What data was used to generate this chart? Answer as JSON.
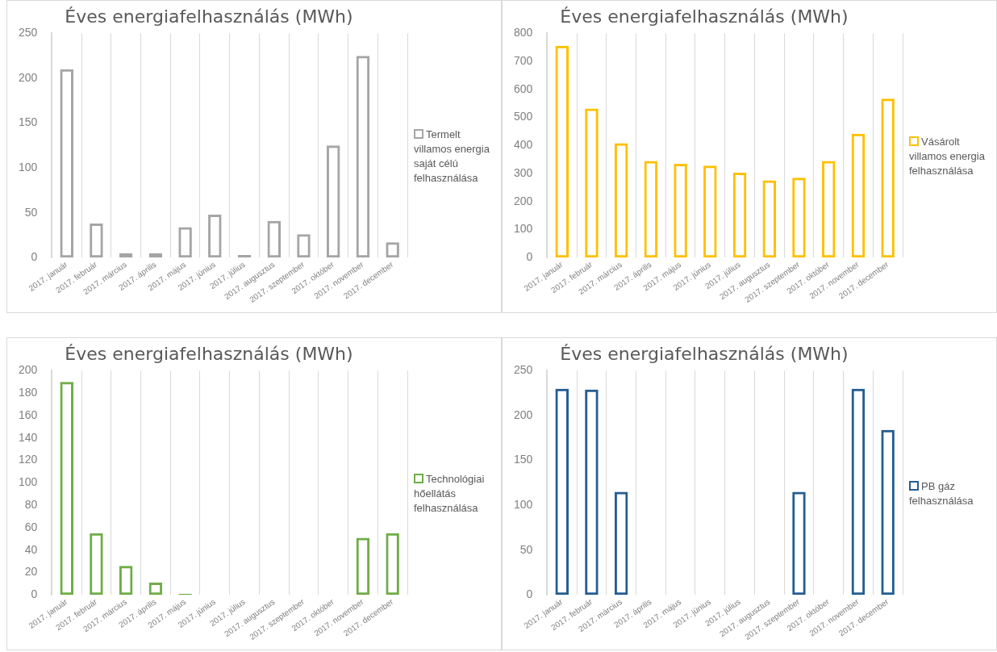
{
  "chart_data": [
    {
      "type": "bar",
      "title": "Éves energiafelhasználás (MWh)",
      "categories": [
        "2017. január",
        "2017. február",
        "2017. március",
        "2017. április",
        "2017. május",
        "2017. június",
        "2017. július",
        "2017. augusztus",
        "2017. szeptember",
        "2017. október",
        "2017. november",
        "2017. december"
      ],
      "series": [
        {
          "name": "Termelt villamos energia saját célú felhasználása",
          "color": "#a5a5a5",
          "values": [
            210,
            38,
            5,
            5,
            34,
            48,
            3,
            41,
            26,
            125,
            225,
            17
          ]
        }
      ],
      "ylim": [
        0,
        250
      ],
      "yticks": [
        0,
        50,
        100,
        150,
        200,
        250
      ],
      "grid": "x",
      "legend": "right"
    },
    {
      "type": "bar",
      "title": "Éves energiafelhasználás (MWh)",
      "categories": [
        "2017. január",
        "2017. február",
        "2017. március",
        "2017. április",
        "2017. május",
        "2017. június",
        "2017. július",
        "2017. augusztus",
        "2017. szeptember",
        "2017. október",
        "2017. november",
        "2017. december"
      ],
      "series": [
        {
          "name": "Vásárolt villamos energia felhasználása",
          "color": "#ffc000",
          "values": [
            756,
            532,
            408,
            345,
            335,
            328,
            303,
            276,
            285,
            345,
            442,
            567
          ]
        }
      ],
      "ylim": [
        0,
        800
      ],
      "yticks": [
        0,
        100,
        200,
        300,
        400,
        500,
        600,
        700,
        800
      ],
      "grid": "x",
      "legend": "right"
    },
    {
      "type": "bar",
      "title": "Éves energiafelhasználás (MWh)",
      "categories": [
        "2017. január",
        "2017. február",
        "2017. március",
        "2017. április",
        "2017. május",
        "2017. június",
        "2017. július",
        "2017. augusztus",
        "2017. szeptember",
        "2017. október",
        "2017. november",
        "2017. december"
      ],
      "series": [
        {
          "name": "Technológiai hőellátás felhasználása",
          "color": "#70ad47",
          "values": [
            190,
            55,
            26,
            11,
            1,
            null,
            null,
            null,
            null,
            null,
            51,
            55
          ]
        }
      ],
      "ylim": [
        0,
        200
      ],
      "yticks": [
        0,
        20,
        40,
        60,
        80,
        100,
        120,
        140,
        160,
        180,
        200
      ],
      "grid": "x",
      "legend": "right"
    },
    {
      "type": "bar",
      "title": "Éves energiafelhasználás (MWh)",
      "categories": [
        "2017. január",
        "2017. február",
        "2017. március",
        "2017. április",
        "2017. május",
        "2017. június",
        "2017. július",
        "2017. augusztus",
        "2017. szeptember",
        "2017. október",
        "2017. november",
        "2017. december"
      ],
      "series": [
        {
          "name": "PB gáz felhasználása",
          "color": "#255e91",
          "values": [
            230,
            229,
            115,
            null,
            null,
            null,
            null,
            null,
            115,
            null,
            230,
            184
          ]
        }
      ],
      "ylim": [
        0,
        250
      ],
      "yticks": [
        0,
        50,
        100,
        150,
        200,
        250
      ],
      "grid": "x",
      "legend": "right"
    }
  ]
}
